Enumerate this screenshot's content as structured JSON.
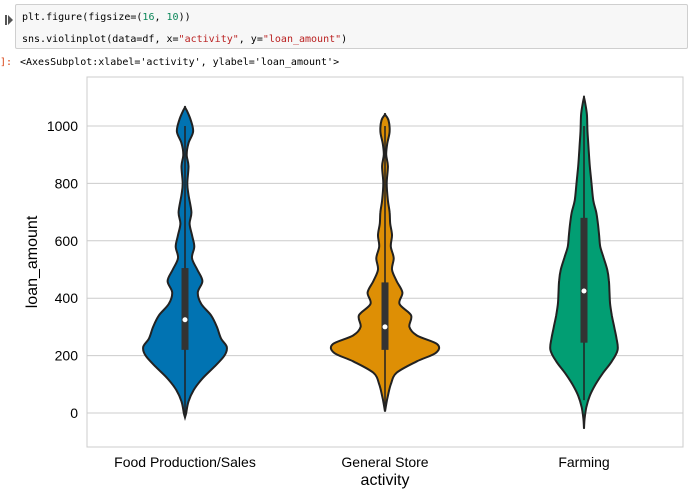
{
  "cell": {
    "run_icon": "run-prompt-icon",
    "line1": {
      "a": "plt.figure(figsize=(",
      "n1": "16",
      "b": ", ",
      "n2": "10",
      "c": "))"
    },
    "line2": {
      "a": "sns.violinplot(data=df, x=",
      "s1": "\"activity\"",
      "b": ", y=",
      "s2": "\"loan_amount\"",
      "c": ")"
    }
  },
  "output": {
    "prompt": "]:",
    "text": "<AxesSubplot:xlabel='activity', ylabel='loan_amount'>"
  },
  "chart_data": {
    "type": "violin",
    "xlabel": "activity",
    "ylabel": "loan_amount",
    "ylim": [
      -110,
      1120
    ],
    "yticks": [
      0,
      200,
      400,
      600,
      800,
      1000
    ],
    "grid": true,
    "categories": [
      "Food Production/Sales",
      "General Store",
      "Farming"
    ],
    "colors": [
      "#0173b2",
      "#de8f05",
      "#029e73"
    ],
    "violins": [
      {
        "category": "Food Production/Sales",
        "min": -15,
        "max": 1065,
        "q1": 220,
        "median": 325,
        "q3": 505,
        "whisker_low": 0,
        "whisker_high": 1000,
        "density": [
          [
            -15,
            0.0
          ],
          [
            0,
            0.02
          ],
          [
            40,
            0.06
          ],
          [
            80,
            0.15
          ],
          [
            120,
            0.3
          ],
          [
            160,
            0.5
          ],
          [
            200,
            0.68
          ],
          [
            230,
            0.72
          ],
          [
            260,
            0.62
          ],
          [
            300,
            0.55
          ],
          [
            340,
            0.45
          ],
          [
            380,
            0.28
          ],
          [
            420,
            0.22
          ],
          [
            460,
            0.3
          ],
          [
            500,
            0.21
          ],
          [
            540,
            0.12
          ],
          [
            580,
            0.16
          ],
          [
            620,
            0.12
          ],
          [
            660,
            0.08
          ],
          [
            700,
            0.11
          ],
          [
            760,
            0.06
          ],
          [
            800,
            0.04
          ],
          [
            860,
            0.06
          ],
          [
            900,
            0.03
          ],
          [
            940,
            0.06
          ],
          [
            980,
            0.14
          ],
          [
            1020,
            0.1
          ],
          [
            1050,
            0.04
          ],
          [
            1065,
            0.0
          ]
        ]
      },
      {
        "category": "General Store",
        "min": 5,
        "max": 1040,
        "q1": 220,
        "median": 300,
        "q3": 455,
        "whisker_low": 20,
        "whisker_high": 1000,
        "density": [
          [
            5,
            0.0
          ],
          [
            30,
            0.02
          ],
          [
            60,
            0.05
          ],
          [
            100,
            0.1
          ],
          [
            140,
            0.2
          ],
          [
            180,
            0.55
          ],
          [
            210,
            0.88
          ],
          [
            240,
            0.9
          ],
          [
            270,
            0.55
          ],
          [
            300,
            0.42
          ],
          [
            340,
            0.45
          ],
          [
            380,
            0.25
          ],
          [
            420,
            0.3
          ],
          [
            460,
            0.2
          ],
          [
            500,
            0.12
          ],
          [
            540,
            0.15
          ],
          [
            580,
            0.1
          ],
          [
            620,
            0.12
          ],
          [
            660,
            0.09
          ],
          [
            700,
            0.08
          ],
          [
            740,
            0.05
          ],
          [
            800,
            0.03
          ],
          [
            860,
            0.05
          ],
          [
            900,
            0.02
          ],
          [
            940,
            0.04
          ],
          [
            980,
            0.08
          ],
          [
            1020,
            0.06
          ],
          [
            1040,
            0.0
          ]
        ]
      },
      {
        "category": "Farming",
        "min": -55,
        "max": 1100,
        "q1": 245,
        "median": 425,
        "q3": 680,
        "whisker_low": 45,
        "whisker_high": 1000,
        "density": [
          [
            -55,
            0.0
          ],
          [
            -20,
            0.01
          ],
          [
            20,
            0.04
          ],
          [
            60,
            0.1
          ],
          [
            100,
            0.2
          ],
          [
            140,
            0.33
          ],
          [
            180,
            0.48
          ],
          [
            220,
            0.58
          ],
          [
            260,
            0.56
          ],
          [
            300,
            0.52
          ],
          [
            340,
            0.48
          ],
          [
            380,
            0.45
          ],
          [
            420,
            0.44
          ],
          [
            460,
            0.43
          ],
          [
            500,
            0.4
          ],
          [
            540,
            0.34
          ],
          [
            580,
            0.28
          ],
          [
            620,
            0.26
          ],
          [
            660,
            0.24
          ],
          [
            700,
            0.21
          ],
          [
            740,
            0.16
          ],
          [
            800,
            0.13
          ],
          [
            860,
            0.1
          ],
          [
            920,
            0.08
          ],
          [
            980,
            0.06
          ],
          [
            1040,
            0.05
          ],
          [
            1080,
            0.02
          ],
          [
            1100,
            0.0
          ]
        ]
      }
    ]
  }
}
